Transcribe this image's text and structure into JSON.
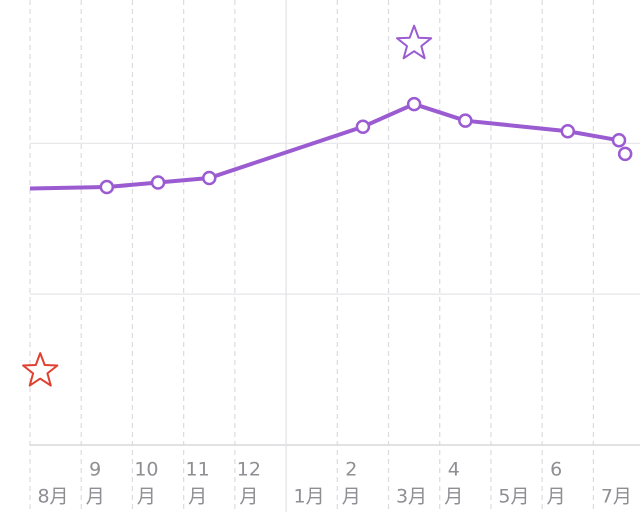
{
  "chart_data": {
    "type": "line",
    "categories": [
      [
        "8月"
      ],
      [
        "9",
        "月"
      ],
      [
        "10",
        "月"
      ],
      [
        "11",
        "月"
      ],
      [
        "12",
        "月"
      ],
      [
        "1月"
      ],
      [
        "2",
        "月"
      ],
      [
        "3月"
      ],
      [
        "4",
        "月"
      ],
      [
        "5月"
      ],
      [
        "6",
        "月"
      ],
      [
        "7月"
      ]
    ],
    "xlim": [
      0,
      11.91
    ],
    "xticks": [
      0,
      1,
      2,
      3,
      4,
      5,
      6,
      7,
      8,
      9,
      10,
      11
    ],
    "year_start_tick": 5,
    "ylim": [
      0,
      2.95
    ],
    "yticks": [
      0,
      1,
      2
    ],
    "show_ytick_labels": false,
    "grid": true,
    "series": [
      {
        "color": "#9b5bd1",
        "x": [
          0,
          1.5,
          2.5,
          3.5,
          6.5,
          7.5,
          8.5,
          10.5,
          11.5
        ],
        "values": [
          1.7,
          1.71,
          1.74,
          1.77,
          2.11,
          2.26,
          2.15,
          2.08,
          2.02
        ],
        "markers_from": 1
      },
      {
        "color": "#9b5bd1",
        "x": [
          11.62
        ],
        "values": [
          1.93
        ],
        "markers_only": true
      }
    ],
    "stars": [
      {
        "color": "#9b5bd1",
        "x": 7.5,
        "value": 2.66
      },
      {
        "color": "#e0402f",
        "x": 0.2,
        "value": 0.49
      }
    ]
  }
}
